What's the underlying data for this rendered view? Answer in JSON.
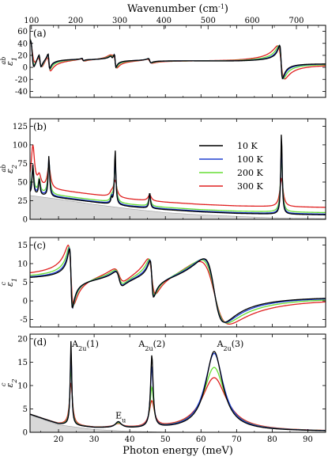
{
  "chart_data": {
    "type": "line",
    "top_axis": {
      "label": "Wavenumber (cm",
      "label_sup": "-1",
      "label_end": ")",
      "ticks": [
        100,
        200,
        300,
        400,
        500,
        600,
        700
      ],
      "range_cm": [
        96.8,
        766.3
      ]
    },
    "x_axis": {
      "label": "Photon energy (meV)",
      "ticks": [
        20,
        30,
        40,
        50,
        60,
        70,
        80,
        90
      ],
      "range": [
        12,
        95
      ]
    },
    "legend": {
      "placement": "top-right of panel (b)",
      "entries": [
        "10 K",
        "100 K",
        "200 K",
        "300 K"
      ]
    },
    "series_colors": {
      "10 K": "#000000",
      "100 K": "#2040d0",
      "200 K": "#66dd33",
      "300 K": "#e02020"
    },
    "shade_color": "#d8d8d8",
    "panels": [
      {
        "id": "a",
        "label": "(a)",
        "ylabel": "ε",
        "ylabel_sub": "1",
        "ylabel_sup": "ab",
        "ylim": [
          -50,
          70
        ],
        "yticks": [
          -40,
          -20,
          0,
          20,
          40,
          60
        ],
        "background": {
          "x": [
            12,
            30,
            40,
            50,
            60,
            70,
            80,
            95
          ],
          "y": [
            18,
            14,
            13,
            12,
            11,
            10,
            10,
            8
          ]
        },
        "oscillators": [
          {
            "e0": 12.6,
            "s": 45,
            "g": [
              1.0,
              1.1,
              1.3,
              1.8
            ]
          },
          {
            "e0": 14.8,
            "s": 22,
            "g": [
              0.6,
              0.7,
              0.9,
              1.3
            ]
          },
          {
            "e0": 17.3,
            "s": 25,
            "g": [
              0.5,
              0.55,
              0.7,
              1.0
            ]
          },
          {
            "e0": 26.8,
            "s": 4,
            "g": [
              0.4,
              0.45,
              0.6,
              1.0
            ]
          },
          {
            "e0": 34.9,
            "s": 5,
            "g": [
              0.7,
              0.8,
              1.0,
              1.4
            ]
          },
          {
            "e0": 35.9,
            "s": 22,
            "g": [
              0.45,
              0.5,
              0.65,
              1.0
            ]
          },
          {
            "e0": 45.6,
            "s": 7,
            "g": [
              0.7,
              0.8,
              1.0,
              1.4
            ]
          },
          {
            "e0": 82.5,
            "s": 55,
            "g": [
              0.8,
              0.95,
              1.3,
              2.0
            ]
          }
        ]
      },
      {
        "id": "b",
        "label": "(b)",
        "ylabel": "ε",
        "ylabel_sub": "2",
        "ylabel_sup": "ab",
        "ylim": [
          0,
          135
        ],
        "yticks": [
          0,
          25,
          50,
          75,
          100,
          125
        ],
        "background": {
          "x": [
            12,
            20,
            30,
            40,
            50,
            60,
            70,
            80,
            95
          ],
          "y": [
            34,
            29,
            23,
            17,
            13,
            10,
            8,
            7,
            6
          ]
        },
        "offsets": [
          0,
          1,
          3,
          10
        ],
        "shade": {
          "x": [
            12,
            20,
            30,
            40,
            50,
            60,
            70,
            80,
            95
          ],
          "y": [
            32,
            27,
            20,
            14,
            9,
            6,
            4,
            2,
            1
          ]
        },
        "peaks": [
          {
            "e0": 12.8,
            "a": [
              40,
              38,
              35,
              55
            ]
          },
          {
            "e0": 14.6,
            "a": [
              22,
              20,
              18,
              14
            ]
          },
          {
            "e0": 17.3,
            "a": [
              55,
              50,
              44,
              30
            ]
          },
          {
            "e0": 34.9,
            "a": [
              8,
              8,
              7,
              5
            ]
          },
          {
            "e0": 35.9,
            "a": [
              75,
              60,
              48,
              22
            ]
          },
          {
            "e0": 45.6,
            "a": [
              22,
              18,
              14,
              8
            ]
          },
          {
            "e0": 82.6,
            "a": [
              112,
              90,
              72,
              38
            ]
          }
        ],
        "peak_widths": [
          0.45,
          0.55,
          0.7,
          1.1
        ]
      },
      {
        "id": "c",
        "label": "(c)",
        "ylabel": "ε",
        "ylabel_sub": "1",
        "ylabel_sup": "c",
        "ylim": [
          -7,
          17
        ],
        "yticks": [
          -5,
          0,
          5,
          10,
          15
        ],
        "background": {
          "x": [
            12,
            30,
            50,
            70,
            95
          ],
          "y": [
            4.5,
            4.2,
            3.8,
            3.2,
            2.5
          ]
        },
        "oscillators": [
          {
            "e0": 23.5,
            "s": 16,
            "g": [
              0.8,
              0.9,
              1.1,
              1.6
            ]
          },
          {
            "e0": 37.0,
            "s": 4,
            "g": [
              2.0,
              2.1,
              2.4,
              3.0
            ]
          },
          {
            "e0": 46.2,
            "s": 10,
            "g": [
              1.0,
              1.15,
              1.5,
              2.2
            ]
          },
          {
            "e0": 63.7,
            "s": 17,
            "g": [
              5.8,
              6.3,
              7.2,
              8.5
            ]
          }
        ]
      },
      {
        "id": "d",
        "label": "(d)",
        "ylabel": "ε",
        "ylabel_sub": "2",
        "ylabel_sup": "c",
        "ylim": [
          0,
          21
        ],
        "yticks": [
          0,
          5,
          10,
          15,
          20
        ],
        "background": {
          "x": [
            12,
            20,
            30,
            40,
            50,
            60,
            70,
            80,
            95
          ],
          "y": [
            3.8,
            1.7,
            0.9,
            0.7,
            0.6,
            0.5,
            0.4,
            0.3,
            0.2
          ]
        },
        "shade": {
          "x": [
            12,
            20,
            30,
            40,
            50,
            95
          ],
          "y": [
            3.7,
            1.6,
            0.6,
            0.2,
            0.05,
            0
          ]
        },
        "peaks": [
          {
            "e0": 23.5,
            "a": [
              18,
              16,
              12.5,
              9
            ]
          },
          {
            "e0": 36.8,
            "a": [
              1.3,
              1.2,
              1.0,
              0.8
            ]
          },
          {
            "e0": 46.2,
            "a": [
              15.5,
              13,
              8.5,
              5.5
            ]
          },
          {
            "e0": 63.7,
            "a": [
              16.8,
              16.4,
              13.4,
              11.2
            ]
          }
        ],
        "peak_widths_by_peak": [
          [
            0.5,
            0.55,
            0.7,
            1.0
          ],
          [
            2.0,
            2.1,
            2.4,
            3.0
          ],
          [
            0.85,
            0.95,
            1.2,
            1.7
          ],
          [
            5.8,
            6.3,
            7.2,
            8.5
          ]
        ],
        "annotations": [
          {
            "text": "A",
            "sub": "2u",
            "rest": "(1)",
            "x": 23.8,
            "y": 18.3
          },
          {
            "text": "A",
            "sub": "2u",
            "rest": "(2)",
            "x": 42.5,
            "y": 18.3
          },
          {
            "text": "A",
            "sub": "2u",
            "rest": "(3)",
            "x": 64.5,
            "y": 18.3
          },
          {
            "text": "E",
            "sub": "u",
            "rest": "",
            "x": 36.0,
            "y": 3.0
          }
        ]
      }
    ]
  }
}
